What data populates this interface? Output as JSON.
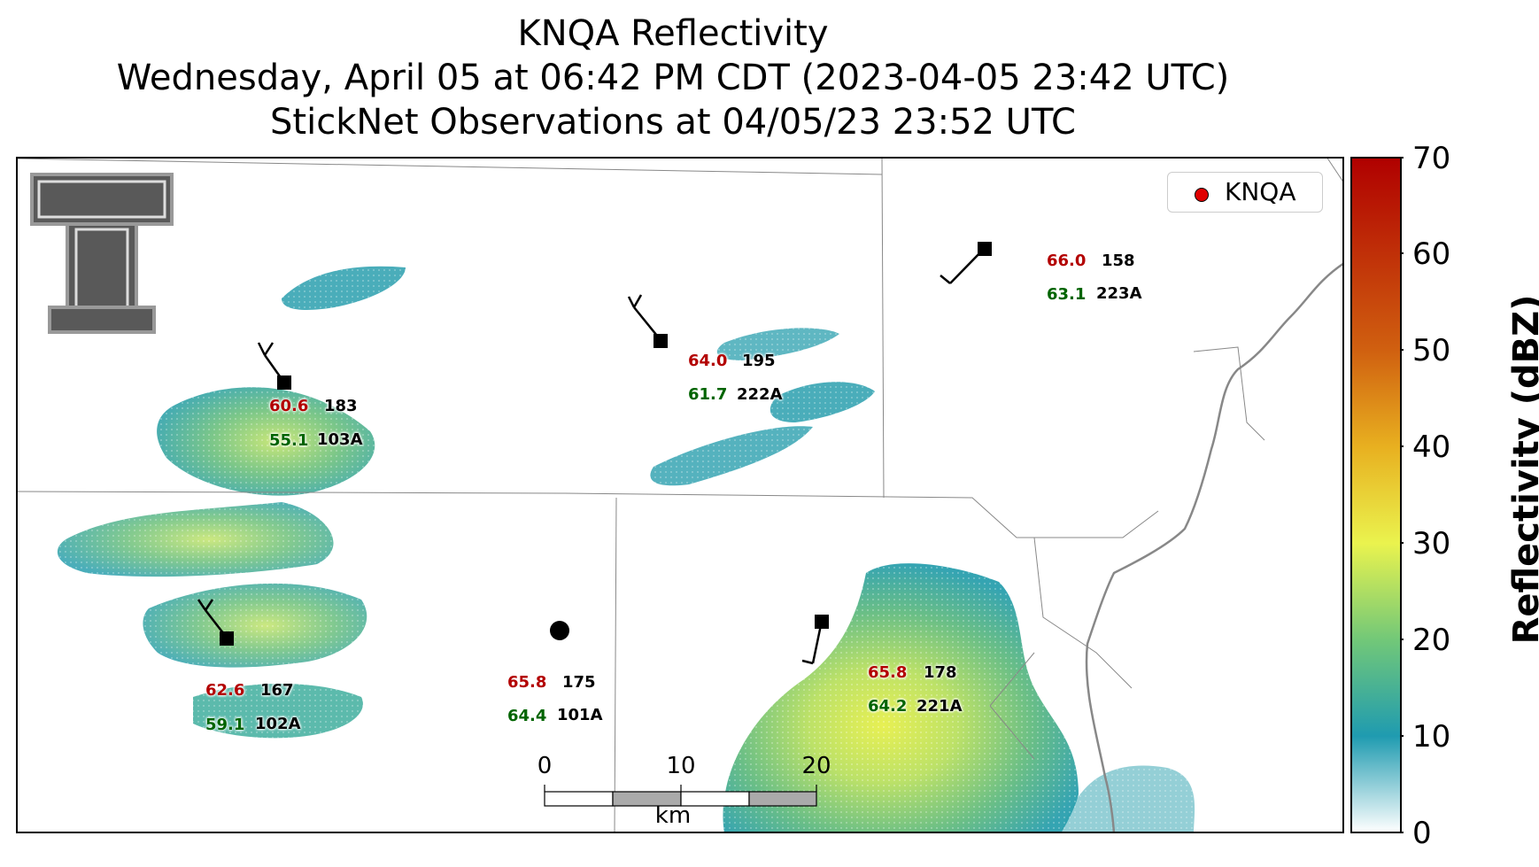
{
  "title": {
    "line1": "KNQA Reflectivity",
    "line2": "Wednesday, April 05 at 06:42 PM CDT (2023-04-05 23:42 UTC)",
    "line3": "StickNet Observations at 04/05/23 23:52 UTC"
  },
  "legend": {
    "label": "KNQA",
    "marker_color": "#e00000"
  },
  "colorbar": {
    "label": "Reflectivity (dBZ)",
    "ticks": [
      "0",
      "10",
      "20",
      "30",
      "40",
      "50",
      "60",
      "70"
    ],
    "range": [
      0,
      70
    ],
    "colors": [
      "#ffffff",
      "#1f9bb0",
      "#72c878",
      "#eaf34e",
      "#e8b020",
      "#d06010",
      "#b00000"
    ]
  },
  "scalebar": {
    "ticks": [
      "0",
      "10",
      "20"
    ],
    "unit": "km"
  },
  "stations": [
    {
      "temp": "60.6",
      "dew": "55.1",
      "id": "103A",
      "elev": "183",
      "marker": "square"
    },
    {
      "temp": "64.0",
      "dew": "61.7",
      "id": "222A",
      "elev": "195",
      "marker": "square"
    },
    {
      "temp": "66.0",
      "dew": "63.1",
      "id": "223A",
      "elev": "158",
      "marker": "square"
    },
    {
      "temp": "62.6",
      "dew": "59.1",
      "id": "102A",
      "elev": "167",
      "marker": "square"
    },
    {
      "temp": "65.8",
      "dew": "64.4",
      "id": "101A",
      "elev": "175",
      "marker": "circle"
    },
    {
      "temp": "65.8",
      "dew": "64.2",
      "id": "221A",
      "elev": "178",
      "marker": "square"
    }
  ],
  "logo": {
    "name": "Texas Tech Double T"
  }
}
